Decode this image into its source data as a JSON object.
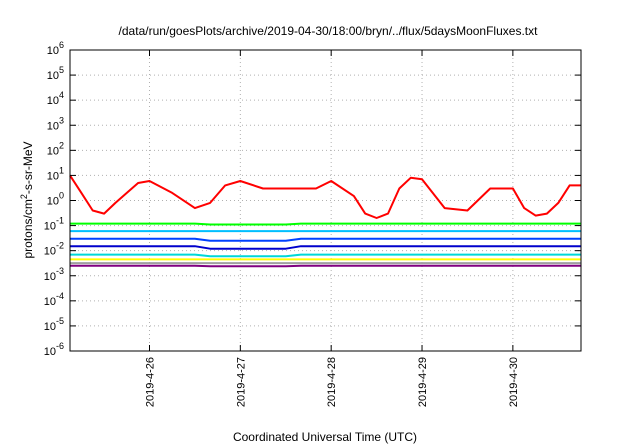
{
  "chart_data": {
    "type": "line",
    "title": "/data/run/goesPlots/archive/2019-04-30/18:00/bryn/../flux/5daysMoonFluxes.txt",
    "xlabel": "Coordinated Universal Time (UTC)",
    "ylabel": "protons/cm²-s-sr-MeV",
    "ylabel_parts": [
      "protons/cm",
      "2",
      "-s-sr-MeV"
    ],
    "x_range": [
      "2019-04-25 03:00",
      "2019-04-30 18:00"
    ],
    "x_tick_labels": [
      "2019-4-26",
      "2019-4-27",
      "2019-4-28",
      "2019-4-29",
      "2019-4-30"
    ],
    "y_scale": "log",
    "ylim": [
      1e-06,
      1000000.0
    ],
    "y_tick_labels": [
      {
        "base": "10",
        "exp": "-6"
      },
      {
        "base": "10",
        "exp": "-5"
      },
      {
        "base": "10",
        "exp": "-4"
      },
      {
        "base": "10",
        "exp": "-3"
      },
      {
        "base": "10",
        "exp": "-2"
      },
      {
        "base": "10",
        "exp": "-1"
      },
      {
        "base": "10",
        "exp": "0"
      },
      {
        "base": "10",
        "exp": "1"
      },
      {
        "base": "10",
        "exp": "2"
      },
      {
        "base": "10",
        "exp": "3"
      },
      {
        "base": "10",
        "exp": "4"
      },
      {
        "base": "10",
        "exp": "5"
      },
      {
        "base": "10",
        "exp": "6"
      }
    ],
    "grid": true,
    "legend": "none",
    "series": [
      {
        "color": "#ff0000",
        "x": [
          "2019-04-25 03:00",
          "2019-04-25 06:00",
          "2019-04-25 09:00",
          "2019-04-25 12:00",
          "2019-04-25 15:00",
          "2019-04-25 18:00",
          "2019-04-25 21:00",
          "2019-04-26 00:00",
          "2019-04-26 06:00",
          "2019-04-26 12:00",
          "2019-04-26 16:00",
          "2019-04-26 20:00",
          "2019-04-27 00:00",
          "2019-04-27 06:00",
          "2019-04-27 12:00",
          "2019-04-27 16:00",
          "2019-04-27 20:00",
          "2019-04-28 00:00",
          "2019-04-28 06:00",
          "2019-04-28 09:00",
          "2019-04-28 12:00",
          "2019-04-28 15:00",
          "2019-04-28 18:00",
          "2019-04-28 21:00",
          "2019-04-29 00:00",
          "2019-04-29 06:00",
          "2019-04-29 12:00",
          "2019-04-29 18:00",
          "2019-04-30 00:00",
          "2019-04-30 03:00",
          "2019-04-30 06:00",
          "2019-04-30 09:00",
          "2019-04-30 12:00",
          "2019-04-30 15:00",
          "2019-04-30 18:00"
        ],
        "values": [
          10,
          2,
          0.4,
          0.3,
          0.8,
          2,
          5,
          6,
          2,
          0.5,
          0.8,
          4,
          6,
          3,
          3,
          3,
          3,
          6,
          1.5,
          0.3,
          0.2,
          0.3,
          3,
          8,
          7,
          0.5,
          0.4,
          3,
          3,
          0.5,
          0.25,
          0.3,
          0.8,
          4,
          4
        ]
      },
      {
        "color": "#00ff00",
        "x": [
          "2019-04-25 03:00",
          "2019-04-26 12:00",
          "2019-04-26 16:00",
          "2019-04-27 12:00",
          "2019-04-27 16:00",
          "2019-04-30 18:00"
        ],
        "values": [
          0.12,
          0.12,
          0.11,
          0.11,
          0.12,
          0.12
        ]
      },
      {
        "color": "#00bfff",
        "x": [
          "2019-04-25 03:00",
          "2019-04-26 12:00",
          "2019-04-26 16:00",
          "2019-04-27 12:00",
          "2019-04-27 16:00",
          "2019-04-30 18:00"
        ],
        "values": [
          0.06,
          0.06,
          0.06,
          0.06,
          0.06,
          0.06
        ]
      },
      {
        "color": "#0040ff",
        "x": [
          "2019-04-25 03:00",
          "2019-04-26 12:00",
          "2019-04-26 16:00",
          "2019-04-27 12:00",
          "2019-04-27 16:00",
          "2019-04-30 18:00"
        ],
        "values": [
          0.03,
          0.03,
          0.025,
          0.025,
          0.03,
          0.03
        ]
      },
      {
        "color": "#0000cc",
        "x": [
          "2019-04-25 03:00",
          "2019-04-26 12:00",
          "2019-04-26 16:00",
          "2019-04-27 12:00",
          "2019-04-27 16:00",
          "2019-04-30 18:00"
        ],
        "values": [
          0.015,
          0.015,
          0.012,
          0.012,
          0.015,
          0.015
        ]
      },
      {
        "color": "#00d8d8",
        "x": [
          "2019-04-25 03:00",
          "2019-04-26 12:00",
          "2019-04-26 16:00",
          "2019-04-27 12:00",
          "2019-04-27 16:00",
          "2019-04-30 18:00"
        ],
        "values": [
          0.007,
          0.007,
          0.006,
          0.006,
          0.007,
          0.007
        ]
      },
      {
        "color": "#ffff00",
        "x": [
          "2019-04-25 03:00",
          "2019-04-30 18:00"
        ],
        "values": [
          0.0045,
          0.0045
        ]
      },
      {
        "color": "#a0a0a0",
        "x": [
          "2019-04-25 03:00",
          "2019-04-30 18:00"
        ],
        "values": [
          0.0032,
          0.0032
        ]
      },
      {
        "color": "#800080",
        "x": [
          "2019-04-25 03:00",
          "2019-04-26 12:00",
          "2019-04-26 16:00",
          "2019-04-27 12:00",
          "2019-04-27 16:00",
          "2019-04-30 18:00"
        ],
        "values": [
          0.0025,
          0.0025,
          0.0024,
          0.0024,
          0.0025,
          0.0025
        ]
      }
    ]
  }
}
